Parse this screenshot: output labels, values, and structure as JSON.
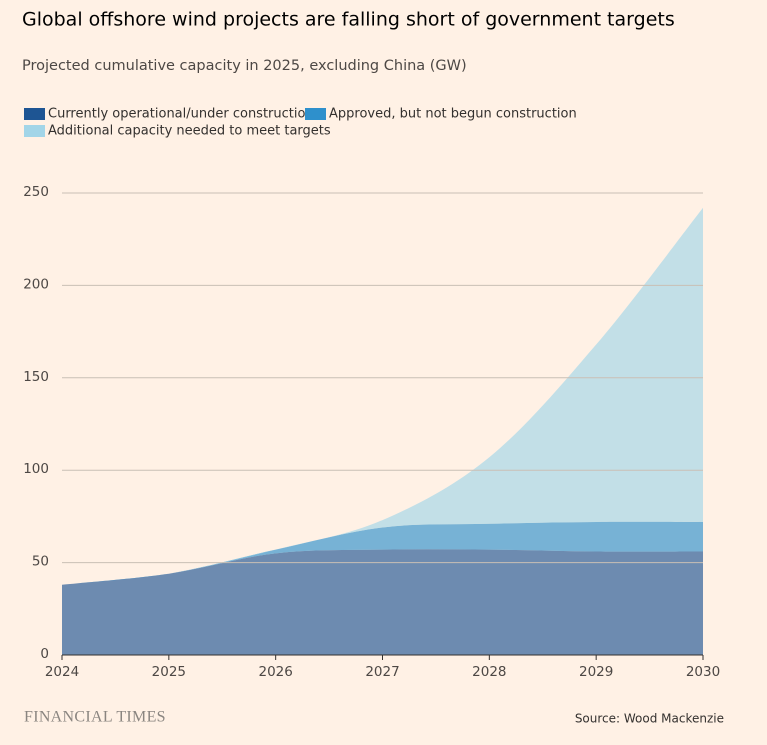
{
  "brand": "FINANCIAL TIMES",
  "chart_data": {
    "type": "stacked-area",
    "title": "Global offshore wind projects are falling short of government targets",
    "subtitle": "Projected cumulative capacity in 2025, excluding China (GW)",
    "source": "Source: Wood Mackenzie",
    "x": [
      2024,
      2025,
      2026,
      2027,
      2028,
      2029,
      2030
    ],
    "xlim": [
      2024,
      2030
    ],
    "xticks": [
      2024,
      2025,
      2026,
      2027,
      2028,
      2029,
      2030
    ],
    "ylim": [
      0,
      250
    ],
    "yticks": [
      0,
      50,
      100,
      150,
      200,
      250
    ],
    "grid": true,
    "series": [
      {
        "name": "Currently operational/under construction",
        "color": "#1e5593",
        "values": [
          38,
          44,
          55,
          57,
          57,
          56,
          56
        ]
      },
      {
        "name": "Approved, but not begun construction",
        "color": "#2e90cc",
        "values": [
          0,
          0,
          2,
          12,
          14,
          16,
          16
        ]
      },
      {
        "name": "Additional capacity needed to meet targets",
        "color": "#a2d5e8",
        "values": [
          0,
          0,
          0,
          4,
          36,
          96,
          170
        ]
      }
    ]
  }
}
